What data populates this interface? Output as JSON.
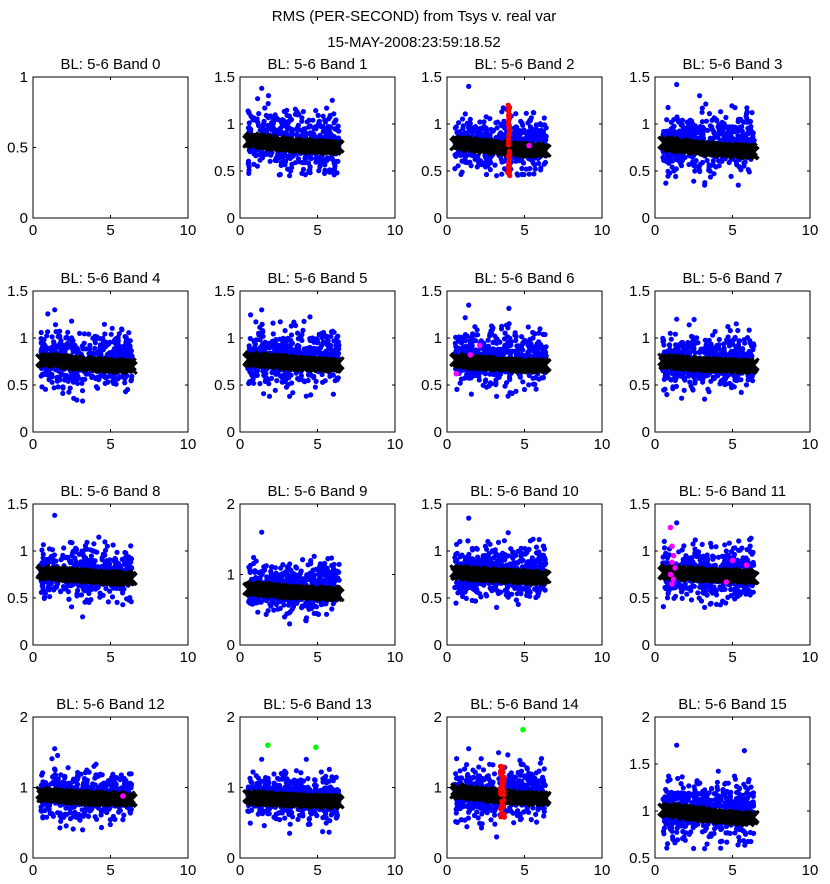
{
  "figure": {
    "title_line1": "RMS (PER-SECOND) from Tsys v. real var",
    "title_line2": "15-MAY-2008:23:59:18.52"
  },
  "colors": {
    "blue": "#0000ff",
    "red": "#ff0000",
    "magenta": "#ff00ff",
    "green": "#00ff00",
    "black": "#000000"
  },
  "chart_data": [
    {
      "type": "scatter",
      "title": "BL: 5-6 Band 0",
      "xlim": [
        0,
        10
      ],
      "ylim": [
        0,
        1
      ],
      "xticks": [
        "0",
        "5",
        "10"
      ],
      "yticks": [
        {
          "v": 0,
          "l": "0"
        },
        {
          "v": 0.5,
          "l": "0.5"
        },
        {
          "v": 1,
          "l": "1"
        }
      ],
      "series": []
    },
    {
      "type": "scatter",
      "title": "BL: 5-6 Band 1",
      "xlim": [
        0,
        10
      ],
      "ylim": [
        0,
        1.5
      ],
      "xticks": [
        "0",
        "5",
        "10"
      ],
      "yticks": [
        {
          "v": 0,
          "l": "0"
        },
        {
          "v": 0.5,
          "l": "0.5"
        },
        {
          "v": 1,
          "l": "1"
        },
        {
          "v": 1.5,
          "l": "1.5"
        }
      ],
      "series": [
        {
          "name": "rms",
          "color": "blue",
          "x_range": [
            0.5,
            6.4
          ],
          "center": 0.82,
          "spread": 0.15,
          "min": 0.45,
          "max": 1.38
        },
        {
          "name": "tsys",
          "color": "black",
          "x": [
            0.6,
            6.3
          ],
          "y": [
            0.83,
            0.75
          ]
        }
      ]
    },
    {
      "type": "scatter",
      "title": "BL: 5-6 Band 2",
      "xlim": [
        0,
        10
      ],
      "ylim": [
        0,
        1.5
      ],
      "xticks": [
        "0",
        "5",
        "10"
      ],
      "yticks": [
        {
          "v": 0,
          "l": "0"
        },
        {
          "v": 0.5,
          "l": "0.5"
        },
        {
          "v": 1,
          "l": "1"
        },
        {
          "v": 1.5,
          "l": "1.5"
        }
      ],
      "series": [
        {
          "name": "rms",
          "color": "blue",
          "x_range": [
            0.5,
            6.4
          ],
          "center": 0.78,
          "spread": 0.14,
          "min": 0.45,
          "max": 1.4
        },
        {
          "name": "tsys",
          "color": "black",
          "x": [
            0.6,
            6.3
          ],
          "y": [
            0.8,
            0.72
          ]
        },
        {
          "name": "flag",
          "color": "red",
          "x": [
            3.95,
            4.05
          ],
          "y_range": [
            0.45,
            1.2
          ],
          "count": 40
        },
        {
          "name": "flag2",
          "color": "magenta",
          "points": [
            [
              5.3,
              0.77
            ]
          ]
        }
      ]
    },
    {
      "type": "scatter",
      "title": "BL: 5-6 Band 3",
      "xlim": [
        0,
        10
      ],
      "ylim": [
        0,
        1.5
      ],
      "xticks": [
        "0",
        "5",
        "10"
      ],
      "yticks": [
        {
          "v": 0,
          "l": "0"
        },
        {
          "v": 0.5,
          "l": "0.5"
        },
        {
          "v": 1,
          "l": "1"
        },
        {
          "v": 1.5,
          "l": "1.5"
        }
      ],
      "series": [
        {
          "name": "rms",
          "color": "blue",
          "x_range": [
            0.5,
            6.4
          ],
          "center": 0.8,
          "spread": 0.15,
          "min": 0.35,
          "max": 1.42
        },
        {
          "name": "tsys",
          "color": "black",
          "x": [
            0.6,
            6.3
          ],
          "y": [
            0.79,
            0.71
          ]
        }
      ]
    },
    {
      "type": "scatter",
      "title": "BL: 5-6 Band 4",
      "xlim": [
        0,
        10
      ],
      "ylim": [
        0,
        1.5
      ],
      "xticks": [
        "0",
        "5",
        "10"
      ],
      "yticks": [
        {
          "v": 0,
          "l": "0"
        },
        {
          "v": 0.5,
          "l": "0.5"
        },
        {
          "v": 1,
          "l": "1"
        },
        {
          "v": 1.5,
          "l": "1.5"
        }
      ],
      "series": [
        {
          "name": "rms",
          "color": "blue",
          "x_range": [
            0.5,
            6.4
          ],
          "center": 0.78,
          "spread": 0.14,
          "min": 0.33,
          "max": 1.3
        },
        {
          "name": "tsys",
          "color": "black",
          "x": [
            0.6,
            6.3
          ],
          "y": [
            0.77,
            0.7
          ]
        }
      ]
    },
    {
      "type": "scatter",
      "title": "BL: 5-6 Band 5",
      "xlim": [
        0,
        10
      ],
      "ylim": [
        0,
        1.5
      ],
      "xticks": [
        "0",
        "5",
        "10"
      ],
      "yticks": [
        {
          "v": 0,
          "l": "0"
        },
        {
          "v": 0.5,
          "l": "0.5"
        },
        {
          "v": 1,
          "l": "1"
        },
        {
          "v": 1.5,
          "l": "1.5"
        }
      ],
      "series": [
        {
          "name": "rms",
          "color": "blue",
          "x_range": [
            0.5,
            6.4
          ],
          "center": 0.8,
          "spread": 0.15,
          "min": 0.38,
          "max": 1.3
        },
        {
          "name": "tsys",
          "color": "black",
          "x": [
            0.6,
            6.3
          ],
          "y": [
            0.78,
            0.71
          ]
        }
      ]
    },
    {
      "type": "scatter",
      "title": "BL: 5-6 Band 6",
      "xlim": [
        0,
        10
      ],
      "ylim": [
        0,
        1.5
      ],
      "xticks": [
        "0",
        "5",
        "10"
      ],
      "yticks": [
        {
          "v": 0,
          "l": "0"
        },
        {
          "v": 0.5,
          "l": "0.5"
        },
        {
          "v": 1,
          "l": "1"
        },
        {
          "v": 1.5,
          "l": "1.5"
        }
      ],
      "series": [
        {
          "name": "rms",
          "color": "blue",
          "x_range": [
            0.5,
            6.4
          ],
          "center": 0.78,
          "spread": 0.15,
          "min": 0.38,
          "max": 1.35
        },
        {
          "name": "tsys",
          "color": "black",
          "x": [
            0.6,
            6.3
          ],
          "y": [
            0.76,
            0.7
          ]
        },
        {
          "name": "flag2",
          "color": "magenta",
          "points": [
            [
              0.6,
              0.62
            ],
            [
              1.5,
              0.82
            ],
            [
              2.1,
              0.92
            ]
          ]
        }
      ]
    },
    {
      "type": "scatter",
      "title": "BL: 5-6 Band 7",
      "xlim": [
        0,
        10
      ],
      "ylim": [
        0,
        1.5
      ],
      "xticks": [
        "0",
        "5",
        "10"
      ],
      "yticks": [
        {
          "v": 0,
          "l": "0"
        },
        {
          "v": 0.5,
          "l": "0.5"
        },
        {
          "v": 1,
          "l": "1"
        },
        {
          "v": 1.5,
          "l": "1.5"
        }
      ],
      "series": [
        {
          "name": "rms",
          "color": "blue",
          "x_range": [
            0.5,
            6.4
          ],
          "center": 0.76,
          "spread": 0.14,
          "min": 0.35,
          "max": 1.2
        },
        {
          "name": "tsys",
          "color": "black",
          "x": [
            0.6,
            6.3
          ],
          "y": [
            0.75,
            0.7
          ]
        }
      ]
    },
    {
      "type": "scatter",
      "title": "BL: 5-6 Band 8",
      "xlim": [
        0,
        10
      ],
      "ylim": [
        0,
        1.5
      ],
      "xticks": [
        "0",
        "5",
        "10"
      ],
      "yticks": [
        {
          "v": 0,
          "l": "0"
        },
        {
          "v": 0.5,
          "l": "0.5"
        },
        {
          "v": 1,
          "l": "1"
        },
        {
          "v": 1.5,
          "l": "1.5"
        }
      ],
      "series": [
        {
          "name": "rms",
          "color": "blue",
          "x_range": [
            0.5,
            6.4
          ],
          "center": 0.76,
          "spread": 0.13,
          "min": 0.3,
          "max": 1.38
        },
        {
          "name": "tsys",
          "color": "black",
          "x": [
            0.6,
            6.3
          ],
          "y": [
            0.77,
            0.71
          ]
        }
      ]
    },
    {
      "type": "scatter",
      "title": "BL: 5-6 Band 9",
      "xlim": [
        0,
        10
      ],
      "ylim": [
        0,
        2
      ],
      "xticks": [
        "0",
        "5",
        "10"
      ],
      "yticks": [
        {
          "v": 0,
          "l": "0"
        },
        {
          "v": 1,
          "l": "1"
        },
        {
          "v": 2,
          "l": "2"
        }
      ],
      "series": [
        {
          "name": "rms",
          "color": "blue",
          "x_range": [
            0.5,
            6.4
          ],
          "center": 0.82,
          "spread": 0.17,
          "min": 0.3,
          "max": 1.6
        },
        {
          "name": "tsys",
          "color": "black",
          "x": [
            0.6,
            6.3
          ],
          "y": [
            0.8,
            0.73
          ]
        }
      ]
    },
    {
      "type": "scatter",
      "title": "BL: 5-6 Band 10",
      "xlim": [
        0,
        10
      ],
      "ylim": [
        0,
        1.5
      ],
      "xticks": [
        "0",
        "5",
        "10"
      ],
      "yticks": [
        {
          "v": 0,
          "l": "0"
        },
        {
          "v": 0.5,
          "l": "0.5"
        },
        {
          "v": 1,
          "l": "1"
        },
        {
          "v": 1.5,
          "l": "1.5"
        }
      ],
      "series": [
        {
          "name": "rms",
          "color": "blue",
          "x_range": [
            0.5,
            6.4
          ],
          "center": 0.77,
          "spread": 0.14,
          "min": 0.4,
          "max": 1.35
        },
        {
          "name": "tsys",
          "color": "black",
          "x": [
            0.6,
            6.3
          ],
          "y": [
            0.77,
            0.72
          ]
        }
      ]
    },
    {
      "type": "scatter",
      "title": "BL: 5-6 Band 11",
      "xlim": [
        0,
        10
      ],
      "ylim": [
        0,
        1.5
      ],
      "xticks": [
        "0",
        "5",
        "10"
      ],
      "yticks": [
        {
          "v": 0,
          "l": "0"
        },
        {
          "v": 0.5,
          "l": "0.5"
        },
        {
          "v": 1,
          "l": "1"
        },
        {
          "v": 1.5,
          "l": "1.5"
        }
      ],
      "series": [
        {
          "name": "rms",
          "color": "blue",
          "x_range": [
            0.5,
            6.4
          ],
          "center": 0.77,
          "spread": 0.14,
          "min": 0.4,
          "max": 1.3
        },
        {
          "name": "tsys",
          "color": "black",
          "x": [
            0.6,
            6.3
          ],
          "y": [
            0.78,
            0.73
          ]
        },
        {
          "name": "flag2",
          "color": "magenta",
          "points": [
            [
              1.0,
              1.25
            ],
            [
              1.1,
              1.05
            ],
            [
              1.2,
              0.95
            ],
            [
              1.1,
              0.88
            ],
            [
              1.3,
              0.82
            ],
            [
              1.0,
              0.75
            ],
            [
              1.2,
              0.7
            ],
            [
              1.1,
              0.65
            ],
            [
              4.6,
              0.67
            ],
            [
              5.0,
              0.9
            ],
            [
              5.9,
              0.85
            ]
          ]
        }
      ]
    },
    {
      "type": "scatter",
      "title": "BL: 5-6 Band 12",
      "xlim": [
        0,
        10
      ],
      "ylim": [
        0,
        2
      ],
      "xticks": [
        "0",
        "5",
        "10"
      ],
      "yticks": [
        {
          "v": 0,
          "l": "0"
        },
        {
          "v": 1,
          "l": "1"
        },
        {
          "v": 2,
          "l": "2"
        }
      ],
      "series": [
        {
          "name": "rms",
          "color": "blue",
          "x_range": [
            0.5,
            6.4
          ],
          "center": 0.88,
          "spread": 0.16,
          "min": 0.4,
          "max": 1.55
        },
        {
          "name": "tsys",
          "color": "black",
          "x": [
            0.6,
            6.3
          ],
          "y": [
            0.9,
            0.83
          ]
        },
        {
          "name": "flag2",
          "color": "magenta",
          "points": [
            [
              5.8,
              0.88
            ]
          ]
        }
      ]
    },
    {
      "type": "scatter",
      "title": "BL: 5-6 Band 13",
      "xlim": [
        0,
        10
      ],
      "ylim": [
        0,
        2
      ],
      "xticks": [
        "0",
        "5",
        "10"
      ],
      "yticks": [
        {
          "v": 0,
          "l": "0"
        },
        {
          "v": 1,
          "l": "1"
        },
        {
          "v": 2,
          "l": "2"
        }
      ],
      "series": [
        {
          "name": "rms",
          "color": "blue",
          "x_range": [
            0.5,
            6.4
          ],
          "center": 0.86,
          "spread": 0.16,
          "min": 0.35,
          "max": 1.4
        },
        {
          "name": "tsys",
          "color": "black",
          "x": [
            0.6,
            6.3
          ],
          "y": [
            0.86,
            0.8
          ]
        },
        {
          "name": "flag3",
          "color": "green",
          "points": [
            [
              1.8,
              1.6
            ],
            [
              4.9,
              1.57
            ]
          ]
        }
      ]
    },
    {
      "type": "scatter",
      "title": "BL: 5-6 Band 14",
      "xlim": [
        0,
        10
      ],
      "ylim": [
        0,
        2
      ],
      "xticks": [
        "0",
        "5",
        "10"
      ],
      "yticks": [
        {
          "v": 0,
          "l": "0"
        },
        {
          "v": 1,
          "l": "1"
        },
        {
          "v": 2,
          "l": "2"
        }
      ],
      "series": [
        {
          "name": "rms",
          "color": "blue",
          "x_range": [
            0.5,
            6.4
          ],
          "center": 0.92,
          "spread": 0.18,
          "min": 0.3,
          "max": 1.55
        },
        {
          "name": "tsys",
          "color": "black",
          "x": [
            0.6,
            6.3
          ],
          "y": [
            0.95,
            0.84
          ]
        },
        {
          "name": "flag",
          "color": "red",
          "x": [
            3.45,
            3.7
          ],
          "y_range": [
            0.58,
            1.3
          ],
          "count": 40
        },
        {
          "name": "flag3",
          "color": "green",
          "points": [
            [
              4.9,
              1.82
            ]
          ]
        }
      ]
    },
    {
      "type": "scatter",
      "title": "BL: 5-6 Band 15",
      "xlim": [
        0,
        10
      ],
      "ylim": [
        0.5,
        2
      ],
      "xticks": [
        "0",
        "5",
        "10"
      ],
      "yticks": [
        {
          "v": 0.5,
          "l": "0.5"
        },
        {
          "v": 1,
          "l": "1"
        },
        {
          "v": 1.5,
          "l": "1.5"
        },
        {
          "v": 2,
          "l": "2"
        }
      ],
      "series": [
        {
          "name": "rms",
          "color": "blue",
          "x_range": [
            0.5,
            6.4
          ],
          "center": 1.0,
          "spread": 0.15,
          "min": 0.6,
          "max": 1.7
        },
        {
          "name": "tsys",
          "color": "black",
          "x": [
            0.6,
            6.3
          ],
          "y": [
            1.02,
            0.92
          ]
        }
      ]
    }
  ]
}
